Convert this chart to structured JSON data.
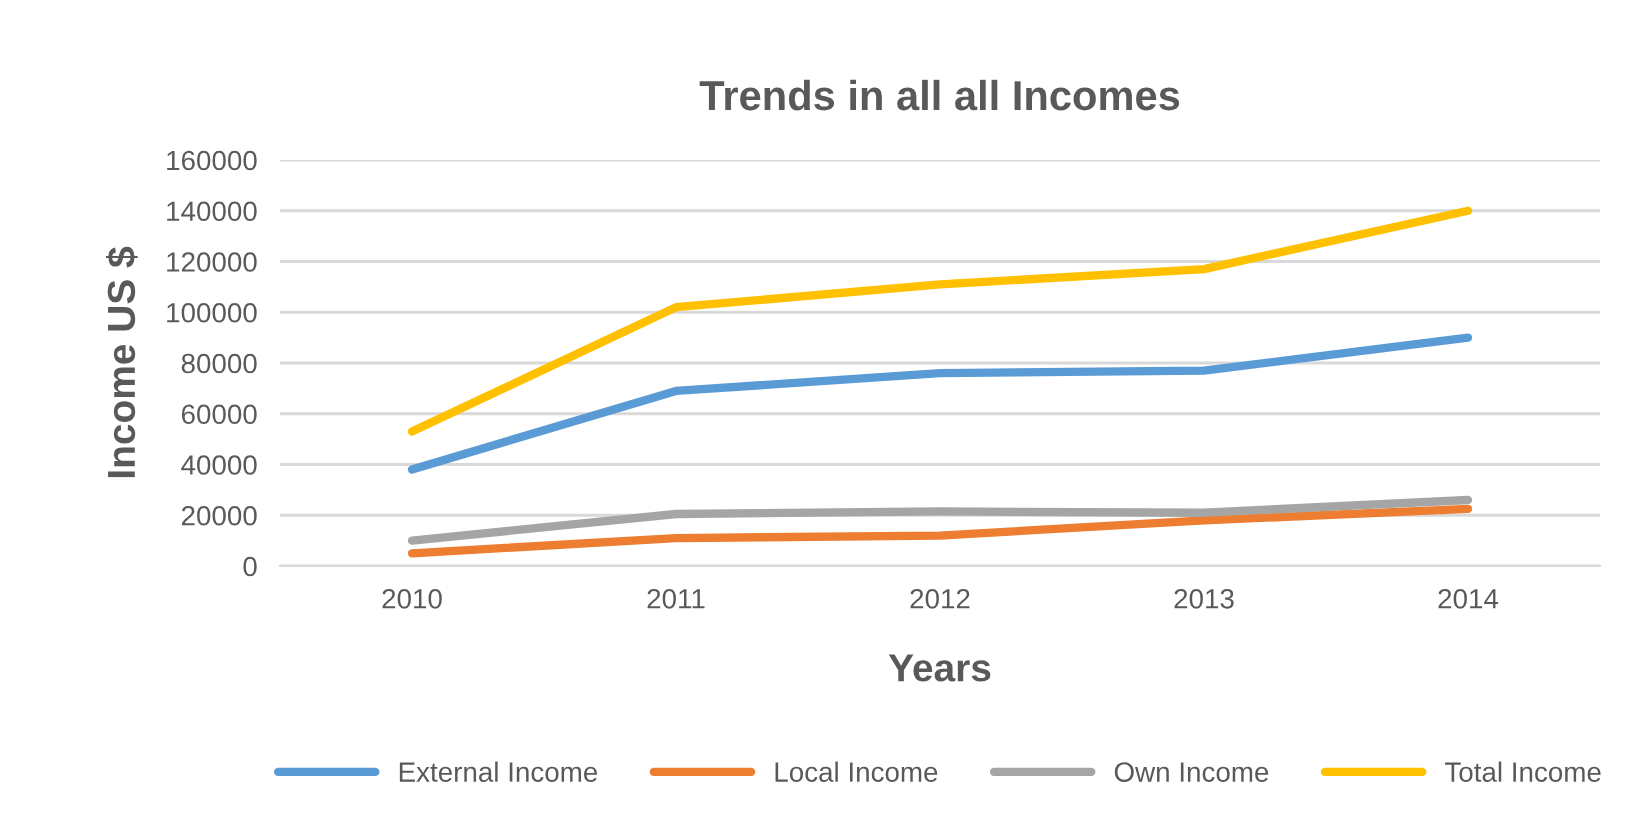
{
  "chart_data": {
    "type": "line",
    "title": "Trends in all all Incomes",
    "xlabel": "Years",
    "ylabel": "Income US $",
    "categories": [
      "2010",
      "2011",
      "2012",
      "2013",
      "2014"
    ],
    "series": [
      {
        "name": "External Income",
        "color": "#5b9bd5",
        "values": [
          38000,
          69000,
          76000,
          77000,
          90000
        ]
      },
      {
        "name": "Local Income",
        "color": "#ed7d31",
        "values": [
          5000,
          11000,
          12000,
          18000,
          22500
        ]
      },
      {
        "name": "Own Income",
        "color": "#a5a5a5",
        "values": [
          10000,
          20500,
          21500,
          21000,
          26000
        ]
      },
      {
        "name": "Total Income",
        "color": "#ffc000",
        "values": [
          53000,
          102000,
          111000,
          117000,
          140000
        ]
      }
    ],
    "ylim": [
      0,
      160000
    ],
    "yticks": [
      0,
      20000,
      40000,
      60000,
      80000,
      100000,
      120000,
      140000,
      160000
    ],
    "grid": "y",
    "legend": "bottom",
    "marker": "none",
    "line_style": "solid"
  }
}
